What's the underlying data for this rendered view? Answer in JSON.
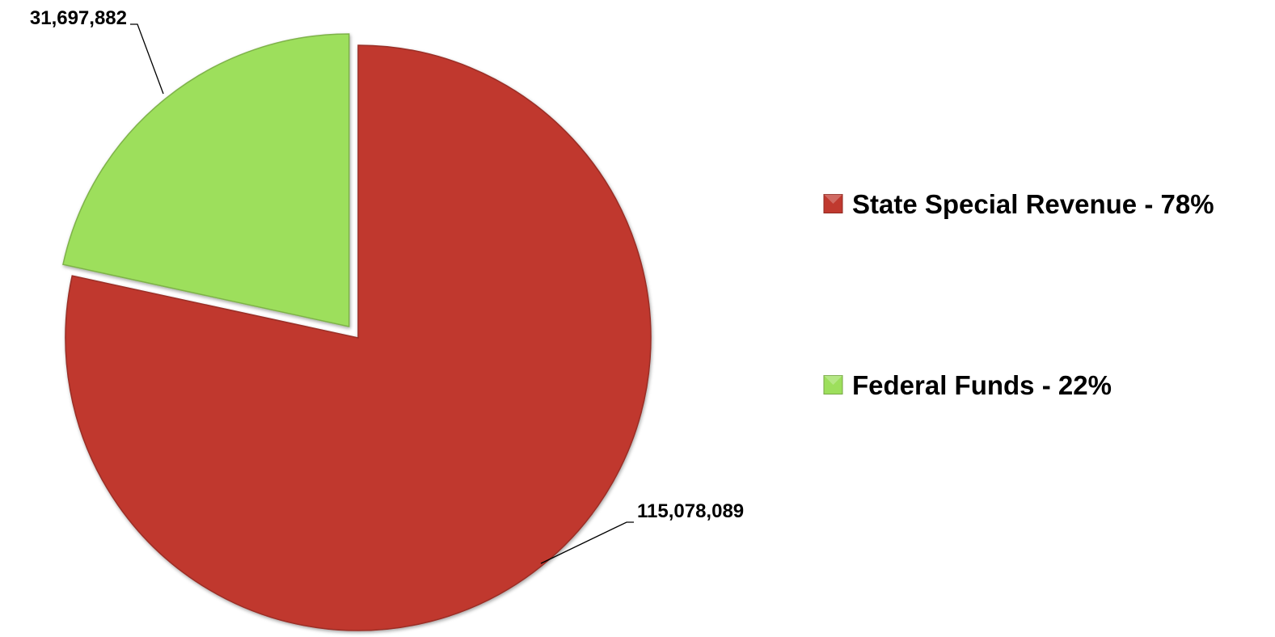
{
  "chart_data": {
    "type": "pie",
    "title": "",
    "slices": [
      {
        "name": "State Special Revenue",
        "value": 115078089,
        "value_label": "115,078,089",
        "legend_label": "State Special Revenue - 78%",
        "color": "#c0392f",
        "exploded": false
      },
      {
        "name": "Federal Funds",
        "value": 31697882,
        "value_label": "31,697,882",
        "legend_label": "Federal Funds - 22%",
        "color": "#9ddf5c",
        "exploded": true
      }
    ],
    "legend_placement": "right",
    "start_angle_deg": 0,
    "direction": "clockwise"
  }
}
